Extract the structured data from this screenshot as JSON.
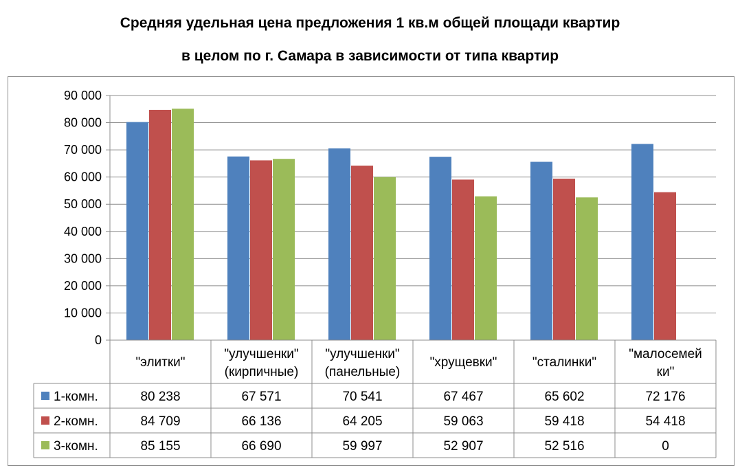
{
  "title_line1": "Средняя удельная цена предложения 1 кв.м общей площади квартир",
  "title_line2": "в целом по г. Самара в зависимости от типа квартир",
  "chart_data": {
    "type": "bar",
    "title": "Средняя удельная цена предложения 1 кв.м общей площади квартир в целом по г. Самара в зависимости от типа квартир",
    "categories": [
      [
        "\"элитки\""
      ],
      [
        "\"улучшенки\"",
        "(кирпичные)"
      ],
      [
        "\"улучшенки\"",
        "(панельные)"
      ],
      [
        "\"хрущевки\""
      ],
      [
        "\"сталинки\""
      ],
      [
        "\"малосемей",
        "ки\""
      ]
    ],
    "series": [
      {
        "name": "1-комн.",
        "color": "#4f81bd",
        "values": [
          80238,
          67571,
          70541,
          67467,
          65602,
          72176
        ],
        "labels": [
          "80 238",
          "67 571",
          "70 541",
          "67 467",
          "65 602",
          "72 176"
        ]
      },
      {
        "name": "2-комн.",
        "color": "#c0504d",
        "values": [
          84709,
          66136,
          64205,
          59063,
          59418,
          54418
        ],
        "labels": [
          "84 709",
          "66 136",
          "64 205",
          "59 063",
          "59 418",
          "54 418"
        ]
      },
      {
        "name": "3-комн.",
        "color": "#9bbb59",
        "values": [
          85155,
          66690,
          59997,
          52907,
          52516,
          0
        ],
        "labels": [
          "85 155",
          "66 690",
          "59 997",
          "52 907",
          "52 516",
          "0"
        ]
      }
    ],
    "ylim": [
      0,
      90000
    ],
    "yticks": [
      0,
      10000,
      20000,
      30000,
      40000,
      50000,
      60000,
      70000,
      80000,
      90000
    ],
    "ytick_labels": [
      "0",
      "10 000",
      "20 000",
      "30 000",
      "40 000",
      "50 000",
      "60 000",
      "70 000",
      "80 000",
      "90 000"
    ],
    "grid": true,
    "legend": "data-table"
  }
}
